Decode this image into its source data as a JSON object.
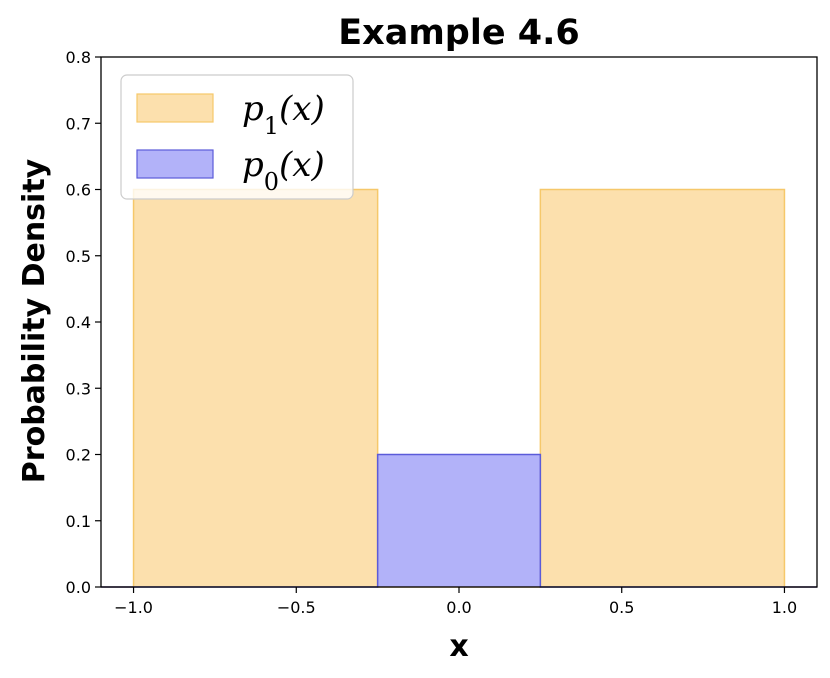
{
  "chart_data": {
    "type": "area",
    "title": "Example 4.6",
    "xlabel": "x",
    "ylabel": "Probability Density",
    "xlim": [
      -1.1,
      1.1
    ],
    "ylim": [
      0,
      0.8
    ],
    "xticks": [
      -1.0,
      -0.5,
      0.0,
      0.5,
      1.0
    ],
    "xtick_labels": [
      "−1.0",
      "−0.5",
      "0.0",
      "0.5",
      "1.0"
    ],
    "yticks": [
      0.0,
      0.1,
      0.2,
      0.3,
      0.4,
      0.5,
      0.6,
      0.7,
      0.8
    ],
    "ytick_labels": [
      "0.0",
      "0.1",
      "0.2",
      "0.3",
      "0.4",
      "0.5",
      "0.6",
      "0.7",
      "0.8"
    ],
    "grid": false,
    "legend_position": "top-left",
    "series": [
      {
        "name": "p1(x)",
        "legend_base": "p",
        "legend_sub": "1",
        "legend_tail": "(x)",
        "fill": "#fbd38a",
        "fill_opacity": 0.7,
        "stroke": "#f6c86a",
        "x": [
          -1.1,
          -1.0,
          -1.0,
          -0.25,
          -0.25,
          0.25,
          0.25,
          1.0,
          1.0,
          1.1
        ],
        "y": [
          0.0,
          0.0,
          0.6,
          0.6,
          0.0,
          0.0,
          0.6,
          0.6,
          0.0,
          0.0
        ]
      },
      {
        "name": "p0(x)",
        "legend_base": "p",
        "legend_sub": "0",
        "legend_tail": "(x)",
        "fill": "#7f7ff5",
        "fill_opacity": 0.6,
        "stroke": "#5b5bd9",
        "x": [
          -1.1,
          -0.25,
          -0.25,
          0.25,
          0.25,
          1.1
        ],
        "y": [
          0.0,
          0.0,
          0.2,
          0.2,
          0.0,
          0.0
        ]
      }
    ]
  }
}
